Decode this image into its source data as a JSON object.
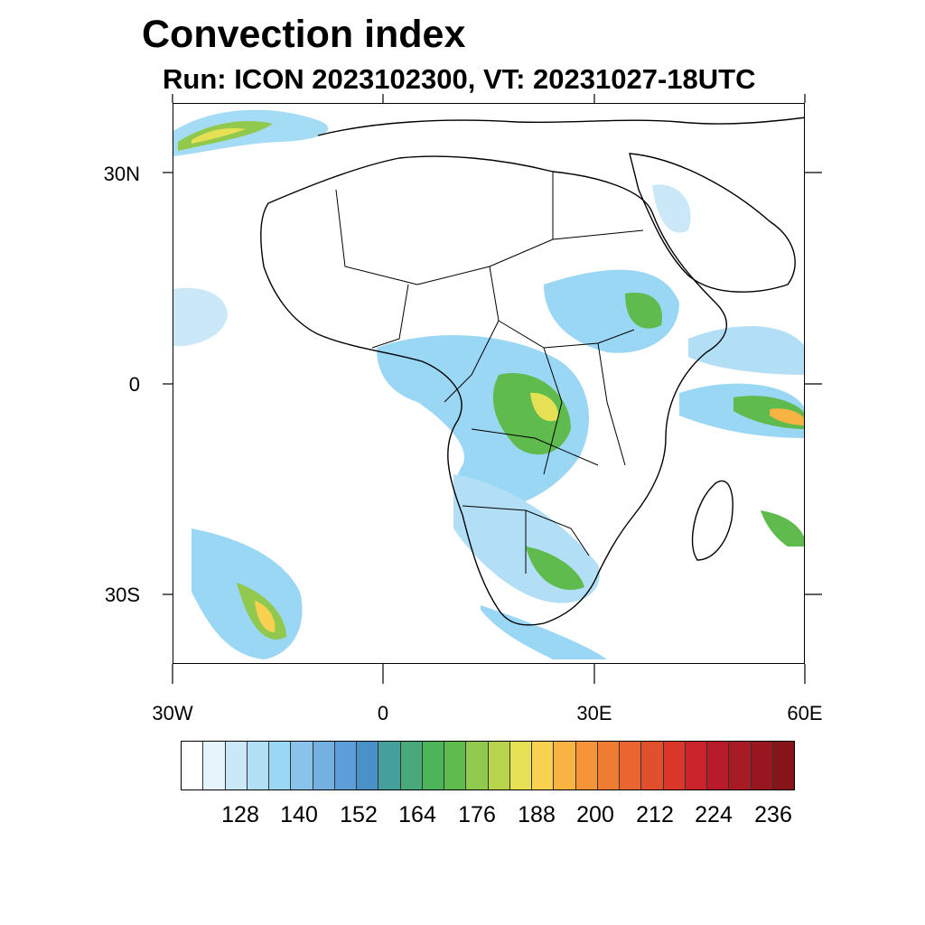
{
  "title": "Convection index",
  "subtitle": "Run: ICON 2023102300,  VT: 20231027-18UTC",
  "map": {
    "region": "Africa",
    "lon_range": [
      -30,
      60
    ],
    "lat_range": [
      -40,
      40
    ],
    "y_axis_labels": [
      "30N",
      "0",
      "30S"
    ],
    "x_axis_labels": [
      "30W",
      "0",
      "30E",
      "60E"
    ]
  },
  "colorbar": {
    "tick_labels": [
      "128",
      "140",
      "152",
      "164",
      "176",
      "188",
      "200",
      "212",
      "224",
      "236"
    ],
    "colors": [
      "#ffffff",
      "#e6f4fc",
      "#cbe8f8",
      "#b2dff6",
      "#9ad7f4",
      "#8ac3ea",
      "#74b1e2",
      "#5e9ed8",
      "#4a91c8",
      "#459f9a",
      "#4aa97a",
      "#4db45a",
      "#5fbb4d",
      "#91c84e",
      "#b8d34c",
      "#e6e154",
      "#f8d150",
      "#f8b342",
      "#f59537",
      "#f07c32",
      "#ea6630",
      "#e0502c",
      "#d9372a",
      "#cc242c",
      "#b81c2a",
      "#a81a24",
      "#981620",
      "#871418"
    ]
  },
  "icons": {
    "map": "africa-convection-map"
  }
}
